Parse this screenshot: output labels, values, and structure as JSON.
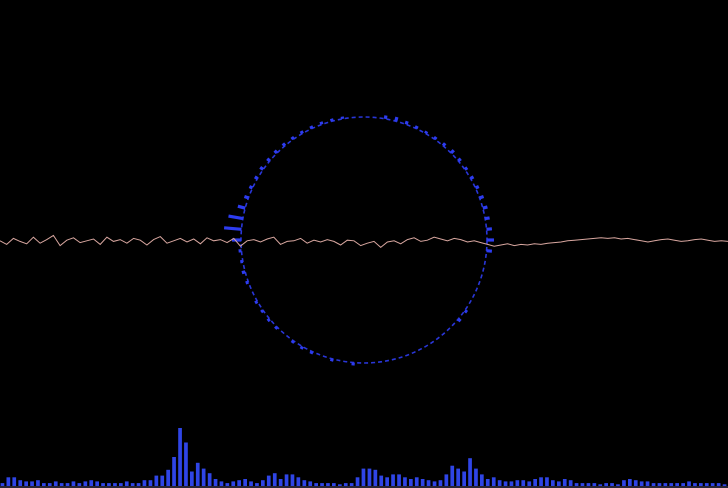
{
  "colors": {
    "background": "#000000",
    "ring": "#2d3cf0",
    "waveform": "#d9a7a0",
    "spectrum_bars": "#2f45e6",
    "bottom_edge": "#2a2536"
  },
  "visualizer": {
    "radial_ring": {
      "segments": 72,
      "levels": [
        0.0,
        0.0,
        0.05,
        0.08,
        0.05,
        0.03,
        0.02,
        0.03,
        0.05,
        0.07,
        0.05,
        0.04,
        0.05,
        0.06,
        0.08,
        0.1,
        0.09,
        0.12,
        0.18,
        0.12,
        0.0,
        0.0,
        0.0,
        0.0,
        0.0,
        0.03,
        0.04,
        0.0,
        0.0,
        0.0,
        0.0,
        0.0,
        0.0,
        0.0,
        0.0,
        0.0,
        0.0,
        0.03,
        0.0,
        0.02,
        0.0,
        0.02,
        0.03,
        0.02,
        0.0,
        0.02,
        0.03,
        0.02,
        0.03,
        0.0,
        0.03,
        0.05,
        0.02,
        0.03,
        0.25,
        0.55,
        0.45,
        0.2,
        0.08,
        0.05,
        0.04,
        0.06,
        0.05,
        0.05,
        0.04,
        0.03,
        0.03,
        0.03,
        0.03,
        0.02,
        0.01,
        0.0
      ]
    },
    "waveform": {
      "samples": [
        0.1,
        -0.2,
        0.3,
        0.05,
        -0.15,
        0.4,
        -0.1,
        0.2,
        0.55,
        -0.3,
        0.15,
        0.35,
        -0.05,
        0.1,
        0.25,
        -0.2,
        0.4,
        0.05,
        0.2,
        -0.1,
        0.3,
        0.15,
        -0.25,
        0.2,
        0.45,
        -0.1,
        0.1,
        0.3,
        0.0,
        0.25,
        -0.15,
        0.35,
        0.1,
        0.2,
        -0.05,
        0.3,
        -0.35,
        0.1,
        0.2,
        0.0,
        0.25,
        0.4,
        -0.2,
        0.05,
        0.1,
        0.3,
        -0.1,
        0.15,
        0.0,
        0.2,
        0.05,
        -0.25,
        0.15,
        0.1,
        -0.3,
        -0.1,
        0.05,
        -0.45,
        0.0,
        0.1,
        -0.15,
        0.2,
        0.35,
        0.05,
        0.15,
        0.4,
        0.25,
        0.1,
        0.3,
        0.2,
        0.0,
        0.1,
        -0.05,
        -0.2,
        -0.35,
        -0.25,
        -0.15,
        -0.3,
        -0.2,
        -0.25,
        -0.15,
        -0.2,
        -0.1,
        -0.05,
        0.0,
        0.1,
        0.15,
        0.2,
        0.25,
        0.3,
        0.35,
        0.3,
        0.35,
        0.25,
        0.3,
        0.2,
        0.1,
        0.0,
        0.1,
        0.2,
        0.25,
        0.15,
        0.05,
        0.1,
        0.2,
        0.25,
        0.15,
        0.05,
        0.1,
        0.05
      ]
    },
    "spectrum": {
      "bars": [
        0.05,
        0.15,
        0.15,
        0.1,
        0.08,
        0.08,
        0.1,
        0.05,
        0.05,
        0.08,
        0.05,
        0.05,
        0.08,
        0.05,
        0.08,
        0.1,
        0.08,
        0.05,
        0.05,
        0.05,
        0.05,
        0.08,
        0.05,
        0.05,
        0.1,
        0.1,
        0.18,
        0.18,
        0.28,
        0.5,
        1.0,
        0.75,
        0.25,
        0.4,
        0.3,
        0.22,
        0.12,
        0.08,
        0.05,
        0.08,
        0.1,
        0.12,
        0.08,
        0.05,
        0.1,
        0.18,
        0.22,
        0.12,
        0.2,
        0.2,
        0.15,
        0.1,
        0.08,
        0.05,
        0.05,
        0.05,
        0.05,
        0.03,
        0.05,
        0.05,
        0.15,
        0.3,
        0.3,
        0.28,
        0.18,
        0.15,
        0.2,
        0.2,
        0.15,
        0.12,
        0.15,
        0.12,
        0.1,
        0.08,
        0.1,
        0.2,
        0.35,
        0.3,
        0.25,
        0.48,
        0.3,
        0.2,
        0.12,
        0.15,
        0.1,
        0.08,
        0.08,
        0.1,
        0.1,
        0.08,
        0.12,
        0.15,
        0.15,
        0.1,
        0.08,
        0.12,
        0.1,
        0.05,
        0.05,
        0.05,
        0.05,
        0.03,
        0.05,
        0.05,
        0.03,
        0.1,
        0.12,
        0.1,
        0.08,
        0.08,
        0.05,
        0.05,
        0.05,
        0.05,
        0.05,
        0.05,
        0.08,
        0.05,
        0.05,
        0.05,
        0.05,
        0.05,
        0.03
      ]
    }
  }
}
